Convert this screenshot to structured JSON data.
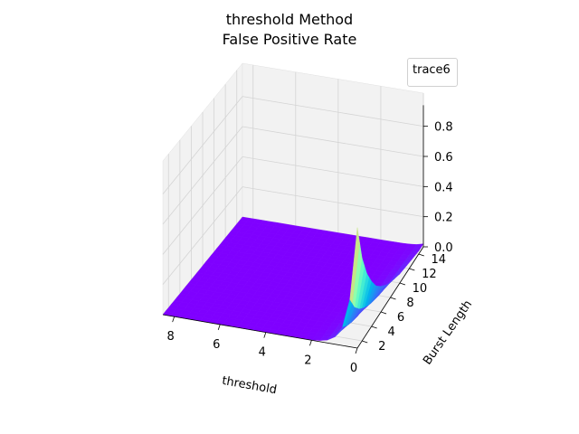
{
  "chart_data": {
    "type": "surface3d",
    "title": "threshold Method",
    "subtitle": "False Positive Rate",
    "xlabel": "threshold",
    "ylabel": "Burst Length",
    "zlabel": "",
    "legend": [
      "trace6"
    ],
    "legend_position": "top-right",
    "colormap": "rainbow",
    "grid": true,
    "xlim": [
      0,
      8.5
    ],
    "ylim": [
      1,
      15
    ],
    "zlim": [
      0,
      0.9
    ],
    "x_ticks": [
      "0",
      "2",
      "4",
      "6",
      "8"
    ],
    "y_ticks": [
      "2",
      "4",
      "6",
      "8",
      "10",
      "12",
      "14"
    ],
    "z_ticks": [
      "0.0",
      "0.2",
      "0.4",
      "0.6",
      "0.8"
    ],
    "series": [
      {
        "name": "trace6",
        "surface_profile": {
          "description_values": "z at threshold near 0 across burst length",
          "burst_length": [
            1,
            2,
            3,
            4,
            5,
            6,
            7,
            8,
            9,
            10,
            11,
            12,
            13,
            14
          ],
          "z_at_min_threshold": [
            0.8,
            0.55,
            0.4,
            0.3,
            0.22,
            0.17,
            0.13,
            0.1,
            0.08,
            0.06,
            0.05,
            0.04,
            0.03,
            0.02
          ],
          "z_elsewhere": 0.0
        }
      }
    ]
  }
}
